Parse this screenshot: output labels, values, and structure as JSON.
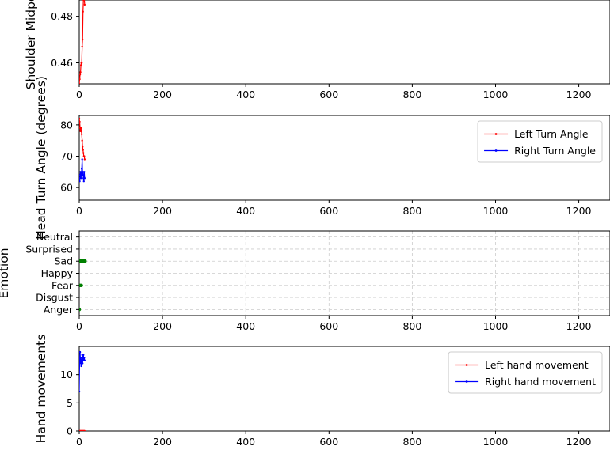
{
  "chart_data": [
    {
      "type": "line",
      "ylabel": "Shoulder Midpo",
      "xlim": [
        0,
        1275
      ],
      "ylim": [
        0.451,
        0.487
      ],
      "xticks": [
        0,
        200,
        400,
        600,
        800,
        1000,
        1200
      ],
      "yticks": [
        0.46,
        0.48
      ],
      "ytick_labels": [
        "0.46",
        "0.48"
      ],
      "grid": false,
      "series": [
        {
          "color": "#ff0000",
          "x": [
            0,
            1,
            2,
            3,
            4,
            5,
            6,
            7,
            8,
            9,
            10,
            11,
            12,
            13
          ],
          "y": [
            0.451,
            0.453,
            0.455,
            0.456,
            0.459,
            0.46,
            0.46,
            0.467,
            0.47,
            0.482,
            0.487,
            0.489,
            0.488,
            0.485
          ]
        }
      ]
    },
    {
      "type": "line",
      "ylabel": "Head Turn Angle (degrees)",
      "xlim": [
        0,
        1275
      ],
      "ylim": [
        56,
        83
      ],
      "xticks": [
        0,
        200,
        400,
        600,
        800,
        1000,
        1200
      ],
      "yticks": [
        60,
        70,
        80
      ],
      "ytick_labels": [
        "60",
        "70",
        "80"
      ],
      "grid": false,
      "legend_position": "upper right",
      "series": [
        {
          "name": "Left Turn Angle",
          "color": "#ff0000",
          "x": [
            0,
            1,
            2,
            3,
            4,
            5,
            6,
            7,
            8,
            9,
            10,
            11,
            12,
            13
          ],
          "y": [
            82,
            81,
            79,
            78,
            79,
            78,
            77,
            75,
            73,
            72,
            71,
            70,
            70,
            69
          ]
        },
        {
          "name": "Right Turn Angle",
          "color": "#0000ff",
          "x": [
            0,
            1,
            2,
            3,
            4,
            5,
            6,
            7,
            8,
            9,
            10,
            11,
            12,
            13
          ],
          "y": [
            63,
            62,
            64,
            65,
            63,
            64,
            66,
            69,
            64,
            65,
            63,
            62,
            65,
            63
          ]
        }
      ]
    },
    {
      "type": "scatter",
      "ylabel": "Emotion",
      "xlim": [
        0,
        1275
      ],
      "categories": [
        "Anger",
        "Disgust",
        "Fear",
        "Happy",
        "Sad",
        "Surprised",
        "Neutral"
      ],
      "ytick_labels": [
        "Anger",
        "Disgust",
        "Fear",
        "Happy",
        "Sad",
        "Surprised",
        "Neutral"
      ],
      "xticks": [
        0,
        200,
        400,
        600,
        800,
        1000,
        1200
      ],
      "grid": true,
      "series": [
        {
          "color": "#008000",
          "x": [
            0,
            1,
            2,
            3,
            4,
            5,
            6,
            7,
            8,
            9,
            10,
            11,
            12,
            13,
            14
          ],
          "y": [
            "Anger",
            "Sad",
            "Fear",
            "Sad",
            "Sad",
            "Fear",
            "Sad",
            "Sad",
            "Sad",
            "Sad",
            "Sad",
            "Sad",
            "Sad",
            "Sad",
            "Sad"
          ]
        }
      ]
    },
    {
      "type": "line",
      "ylabel": "Hand movements",
      "xlim": [
        0,
        1275
      ],
      "ylim": [
        0,
        15
      ],
      "xticks": [
        0,
        200,
        400,
        600,
        800,
        1000,
        1200
      ],
      "yticks": [
        0,
        5,
        10
      ],
      "ytick_labels": [
        "0",
        "5",
        "10"
      ],
      "grid": false,
      "legend_position": "upper right",
      "series": [
        {
          "name": "Left hand movement",
          "color": "#ff0000",
          "x": [
            0,
            1,
            2,
            3,
            4,
            5,
            6,
            7,
            8,
            9,
            10,
            11,
            12,
            13
          ],
          "y": [
            0,
            0,
            0,
            0,
            0,
            0,
            0,
            0,
            0,
            0,
            0,
            0,
            0,
            0
          ]
        },
        {
          "name": "Right hand movement",
          "color": "#0000ff",
          "x": [
            0,
            1,
            2,
            3,
            4,
            5,
            6,
            7,
            8,
            9,
            10,
            11,
            12,
            13
          ],
          "y": [
            7,
            13,
            14,
            12,
            13,
            11.5,
            12,
            13.5,
            12,
            13,
            13.5,
            12.5,
            13,
            12.5
          ]
        }
      ]
    }
  ]
}
